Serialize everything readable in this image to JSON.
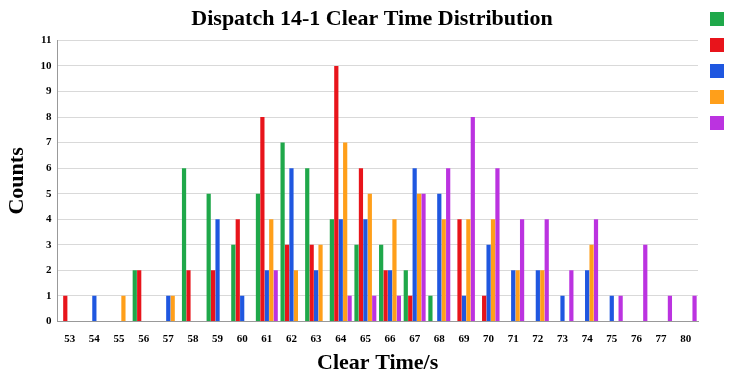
{
  "chart_data": {
    "type": "bar",
    "title": "Dispatch 14-1 Clear Time Distribution",
    "x_label": "Clear Time/s",
    "y_label": "Counts",
    "categories": [
      "53",
      "54",
      "55",
      "56",
      "57",
      "58",
      "59",
      "60",
      "61",
      "62",
      "63",
      "64",
      "65",
      "66",
      "67",
      "68",
      "69",
      "70",
      "71",
      "72",
      "73",
      "74",
      "75",
      "76",
      "77",
      "80"
    ],
    "series": [
      {
        "color": "#1fa84a",
        "values": [
          0,
          0,
          0,
          2,
          0,
          6,
          5,
          3,
          5,
          7,
          6,
          4,
          3,
          3,
          2,
          1,
          0,
          0,
          0,
          0,
          0,
          0,
          0,
          0,
          0,
          0
        ]
      },
      {
        "color": "#e8141b",
        "values": [
          1,
          0,
          0,
          2,
          0,
          2,
          2,
          4,
          8,
          3,
          3,
          10,
          6,
          2,
          1,
          0,
          4,
          1,
          0,
          0,
          0,
          0,
          0,
          0,
          0,
          0
        ]
      },
      {
        "color": "#1f57e0",
        "values": [
          0,
          1,
          0,
          0,
          1,
          0,
          4,
          1,
          2,
          6,
          2,
          4,
          4,
          2,
          6,
          5,
          1,
          3,
          2,
          2,
          1,
          2,
          1,
          0,
          0,
          0
        ]
      },
      {
        "color": "#ff9f1a",
        "values": [
          0,
          0,
          1,
          0,
          1,
          0,
          0,
          0,
          4,
          2,
          3,
          7,
          5,
          4,
          5,
          4,
          4,
          4,
          2,
          2,
          0,
          3,
          0,
          0,
          0,
          0
        ]
      },
      {
        "color": "#bb33e0",
        "values": [
          0,
          0,
          0,
          0,
          0,
          0,
          0,
          0,
          2,
          0,
          0,
          1,
          1,
          1,
          5,
          6,
          8,
          6,
          4,
          4,
          2,
          4,
          1,
          3,
          1,
          1
        ]
      }
    ],
    "ylim": [
      0,
      11
    ],
    "yticks": [
      0,
      1,
      2,
      3,
      4,
      5,
      6,
      7,
      8,
      9,
      10,
      11
    ],
    "grid": true,
    "legend": "right"
  }
}
